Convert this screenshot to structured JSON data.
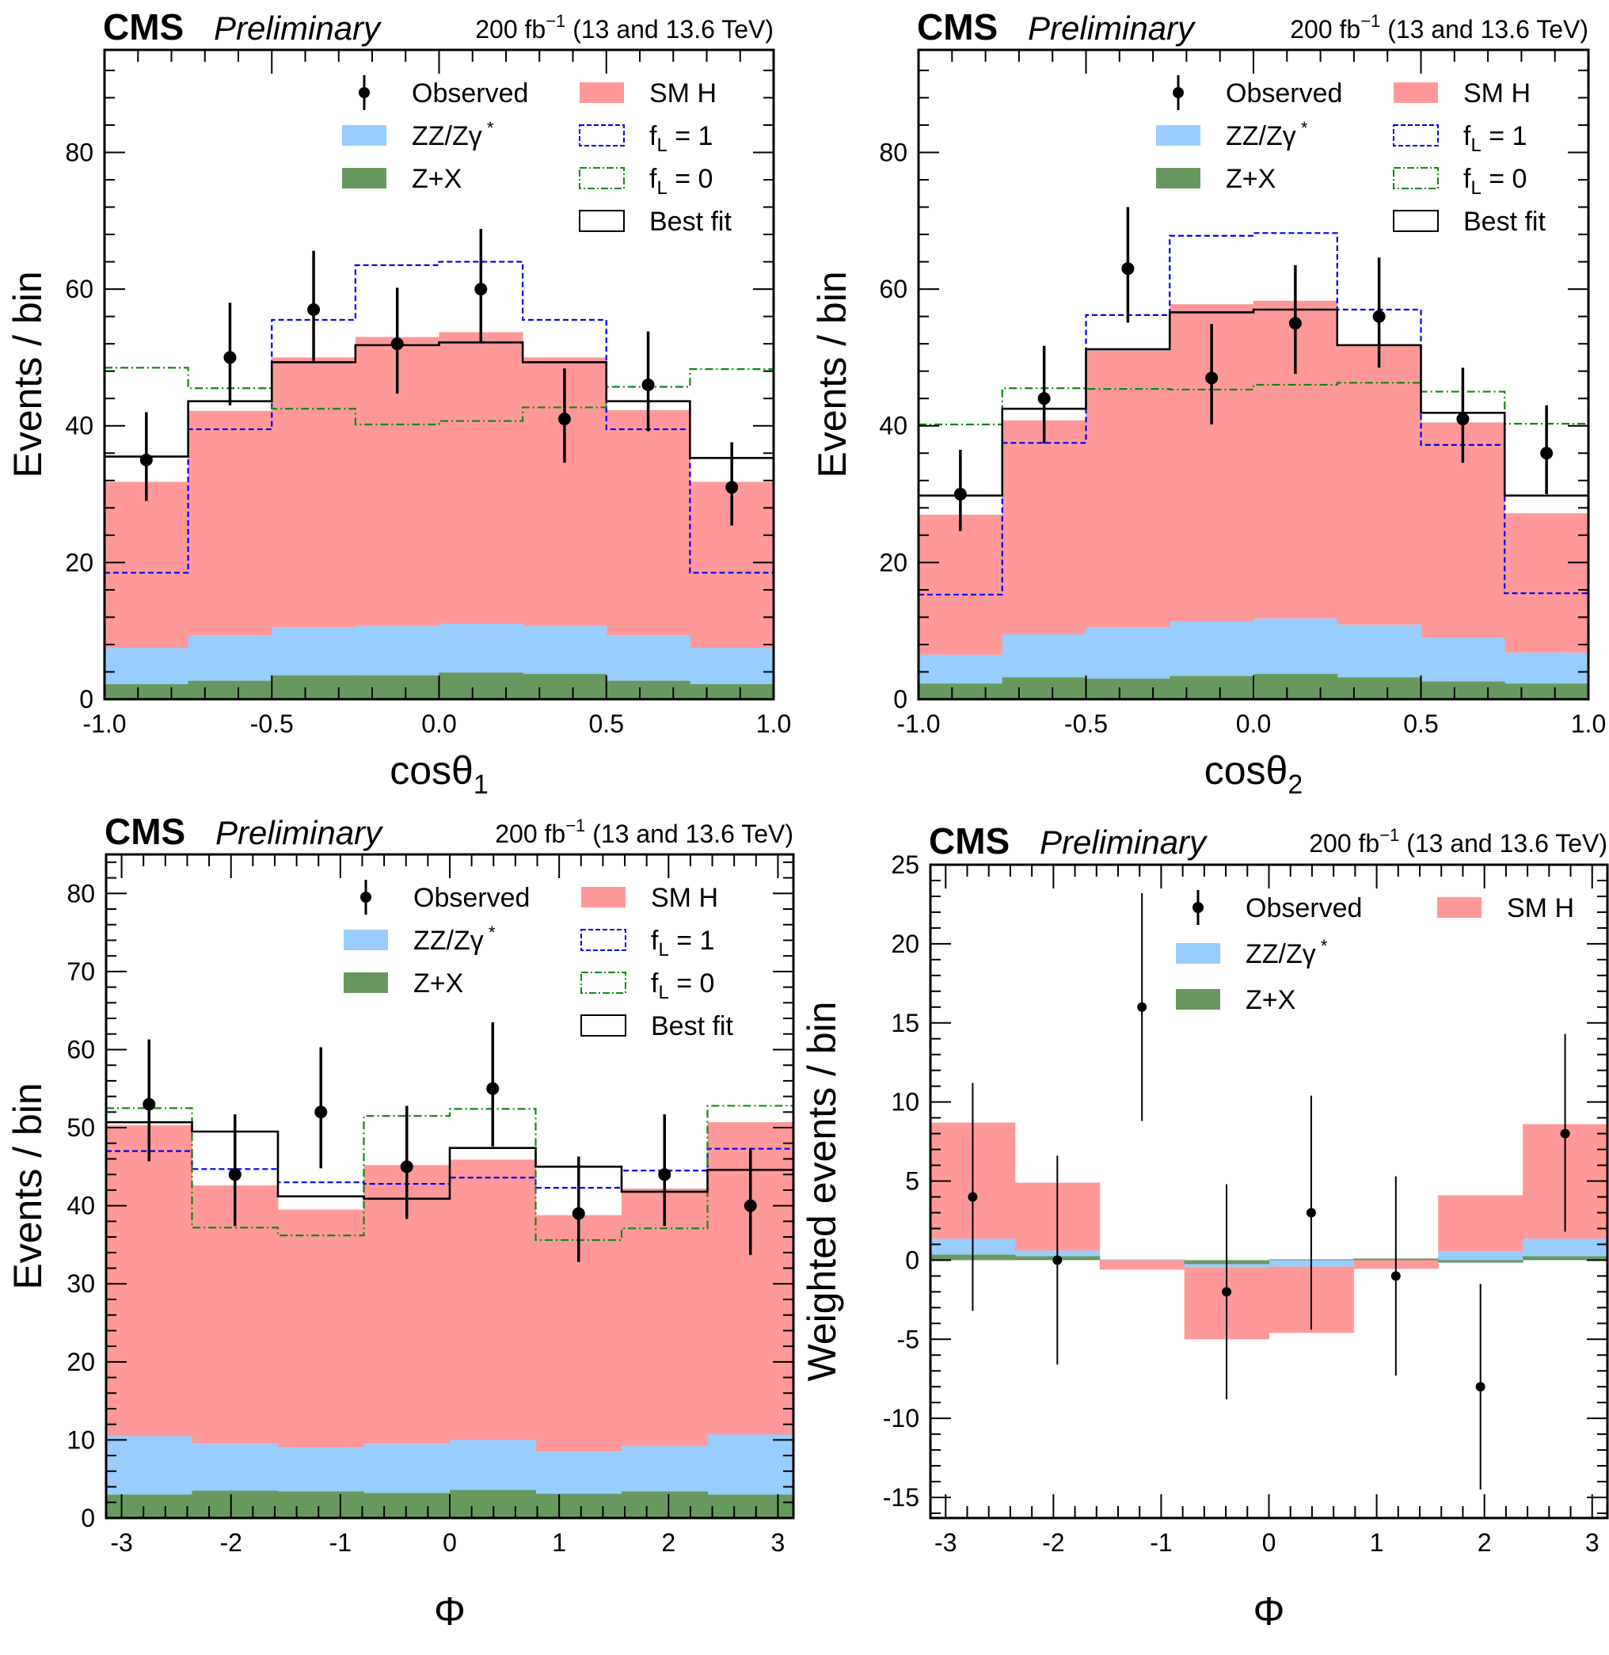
{
  "chart_data": [
    {
      "type": "bar",
      "id": "cos-theta1",
      "header": {
        "experiment": "CMS",
        "status": "Preliminary",
        "lumi": "200 fb",
        "lumi_exp": "−1",
        "energy": "(13 and 13.6 TeV)"
      },
      "xlabel": "cosθ",
      "xlabel_sub": "1",
      "ylabel": "Events / bin",
      "xlim": [
        -1.0,
        1.0
      ],
      "ylim": [
        0,
        95
      ],
      "xticks": [
        -1.0,
        -0.5,
        0.0,
        0.5,
        1.0
      ],
      "xtick_labels": [
        "-1.0",
        "-0.5",
        "0.0",
        "0.5",
        "1.0"
      ],
      "yticks": [
        0,
        20,
        40,
        60,
        80
      ],
      "bin_edges": [
        -1.0,
        -0.75,
        -0.5,
        -0.25,
        0.0,
        0.25,
        0.5,
        0.75,
        1.0
      ],
      "legend": {
        "placement": "top-right",
        "entries": [
          "Observed",
          "SM H",
          "ZZ/Zγ*",
          "f_L = 1",
          "Z+X",
          "f_L = 0",
          "Best fit"
        ]
      },
      "series": [
        {
          "name": "Z+X",
          "kind": "stack",
          "values": [
            2.2,
            2.7,
            3.5,
            3.5,
            3.9,
            3.7,
            2.7,
            2.2
          ]
        },
        {
          "name": "ZZ/Zγ*",
          "kind": "stack",
          "values": [
            5.3,
            6.6,
            7.0,
            7.2,
            7.1,
            7.0,
            6.6,
            5.3
          ]
        },
        {
          "name": "SM H",
          "kind": "stack",
          "values": [
            24.3,
            32.9,
            39.5,
            42.3,
            42.7,
            39.3,
            33.0,
            24.3
          ]
        },
        {
          "name": "f_L = 1",
          "kind": "step",
          "values": [
            18.5,
            39.5,
            55.5,
            63.5,
            64.0,
            55.5,
            39.5,
            18.5
          ]
        },
        {
          "name": "f_L = 0",
          "kind": "step",
          "values": [
            48.5,
            45.5,
            42.5,
            40.2,
            40.7,
            42.7,
            45.7,
            48.3
          ]
        },
        {
          "name": "Best fit",
          "kind": "step",
          "values": [
            35.5,
            43.6,
            49.3,
            51.8,
            52.2,
            49.3,
            43.6,
            35.3
          ]
        },
        {
          "name": "Observed",
          "kind": "points",
          "values": [
            35,
            50,
            57,
            52,
            60,
            41,
            46,
            31
          ],
          "err_low": [
            6.0,
            7.0,
            7.5,
            7.3,
            7.8,
            6.4,
            6.8,
            5.6
          ],
          "err_high": [
            7.0,
            8.0,
            8.6,
            8.2,
            8.8,
            7.4,
            7.8,
            6.6
          ]
        }
      ]
    },
    {
      "type": "bar",
      "id": "cos-theta2",
      "header": {
        "experiment": "CMS",
        "status": "Preliminary",
        "lumi": "200 fb",
        "lumi_exp": "−1",
        "energy": "(13 and 13.6 TeV)"
      },
      "xlabel": "cosθ",
      "xlabel_sub": "2",
      "ylabel": "Events / bin",
      "xlim": [
        -1.0,
        1.0
      ],
      "ylim": [
        0,
        95
      ],
      "xticks": [
        -1.0,
        -0.5,
        0.0,
        0.5,
        1.0
      ],
      "xtick_labels": [
        "-1.0",
        "-0.5",
        "0.0",
        "0.5",
        "1.0"
      ],
      "yticks": [
        0,
        20,
        40,
        60,
        80
      ],
      "bin_edges": [
        -1.0,
        -0.75,
        -0.5,
        -0.25,
        0.0,
        0.25,
        0.5,
        0.75,
        1.0
      ],
      "legend": {
        "placement": "top-right",
        "entries": [
          "Observed",
          "SM H",
          "ZZ/Zγ*",
          "f_L = 1",
          "Z+X",
          "f_L = 0",
          "Best fit"
        ]
      },
      "series": [
        {
          "name": "Z+X",
          "kind": "stack",
          "values": [
            2.3,
            3.2,
            3.0,
            3.4,
            3.7,
            3.2,
            2.6,
            2.3
          ]
        },
        {
          "name": "ZZ/Zγ*",
          "kind": "stack",
          "values": [
            4.2,
            6.3,
            7.5,
            8.0,
            8.1,
            7.7,
            6.4,
            4.5
          ]
        },
        {
          "name": "SM H",
          "kind": "stack",
          "values": [
            20.5,
            31.3,
            40.5,
            46.4,
            46.5,
            40.9,
            31.5,
            20.4
          ]
        },
        {
          "name": "f_L = 1",
          "kind": "step",
          "values": [
            15.3,
            37.5,
            56.2,
            67.8,
            68.2,
            57.0,
            37.2,
            15.5
          ]
        },
        {
          "name": "f_L = 0",
          "kind": "step",
          "values": [
            40.2,
            45.5,
            45.4,
            45.3,
            46.0,
            46.3,
            45.0,
            40.3
          ]
        },
        {
          "name": "Best fit",
          "kind": "step",
          "values": [
            29.8,
            42.5,
            51.2,
            56.6,
            57.0,
            51.8,
            41.9,
            29.8
          ]
        },
        {
          "name": "Observed",
          "kind": "points",
          "values": [
            30,
            44,
            63,
            47,
            55,
            56,
            41,
            36
          ],
          "err_low": [
            5.4,
            6.6,
            7.9,
            6.8,
            7.4,
            7.5,
            6.4,
            6.0
          ],
          "err_high": [
            6.5,
            7.7,
            9.0,
            7.9,
            8.5,
            8.6,
            7.5,
            7.0
          ]
        }
      ]
    },
    {
      "type": "bar",
      "id": "phi",
      "header": {
        "experiment": "CMS",
        "status": "Preliminary",
        "lumi": "200 fb",
        "lumi_exp": "−1",
        "energy": "(13 and 13.6 TeV)"
      },
      "xlabel": "Φ",
      "xlabel_sub": "",
      "ylabel": "Events / bin",
      "xlim": [
        -3.1416,
        3.1416
      ],
      "ylim": [
        0,
        85
      ],
      "xticks": [
        -3,
        -2,
        -1,
        0,
        1,
        2,
        3
      ],
      "xtick_labels": [
        "-3",
        "-2",
        "-1",
        "0",
        "1",
        "2",
        "3"
      ],
      "yticks": [
        0,
        10,
        20,
        30,
        40,
        50,
        60,
        70,
        80
      ],
      "bin_edges": [
        -3.1416,
        -2.3562,
        -1.5708,
        -0.7854,
        0.0,
        0.7854,
        1.5708,
        2.3562,
        3.1416
      ],
      "legend": {
        "placement": "top-right",
        "entries": [
          "Observed",
          "SM H",
          "ZZ/Zγ*",
          "f_L = 1",
          "Z+X",
          "f_L = 0",
          "Best fit"
        ]
      },
      "series": [
        {
          "name": "Z+X",
          "kind": "stack",
          "values": [
            3.0,
            3.5,
            3.4,
            3.2,
            3.6,
            3.1,
            3.4,
            3.0
          ]
        },
        {
          "name": "ZZ/Zγ*",
          "kind": "stack",
          "values": [
            7.5,
            6.0,
            5.6,
            6.3,
            6.4,
            5.4,
            5.8,
            7.7
          ]
        },
        {
          "name": "SM H",
          "kind": "stack",
          "values": [
            39.8,
            33.1,
            30.5,
            35.7,
            35.9,
            30.3,
            33.0,
            40.0
          ]
        },
        {
          "name": "f_L = 1",
          "kind": "step",
          "values": [
            47.0,
            44.7,
            43.0,
            42.8,
            43.6,
            42.3,
            44.5,
            47.3
          ]
        },
        {
          "name": "f_L = 0",
          "kind": "step",
          "values": [
            52.5,
            37.2,
            36.2,
            51.5,
            52.4,
            35.6,
            37.1,
            52.8
          ]
        },
        {
          "name": "Best fit",
          "kind": "step",
          "values": [
            50.7,
            49.5,
            41.2,
            40.9,
            47.4,
            45.0,
            41.8,
            44.6
          ]
        },
        {
          "name": "Observed",
          "kind": "points",
          "values": [
            53,
            44,
            52,
            45,
            55,
            39,
            44,
            40
          ],
          "err_low": [
            7.3,
            6.6,
            7.2,
            6.7,
            7.4,
            6.2,
            6.6,
            6.3
          ],
          "err_high": [
            8.3,
            7.7,
            8.3,
            7.8,
            8.5,
            7.3,
            7.7,
            7.4
          ]
        }
      ]
    },
    {
      "type": "bar",
      "id": "phi-weighted",
      "header": {
        "experiment": "CMS",
        "status": "Preliminary",
        "lumi": "200 fb",
        "lumi_exp": "−1",
        "energy": "(13 and 13.6 TeV)"
      },
      "xlabel": "Φ",
      "xlabel_sub": "",
      "ylabel": "Weighted events / bin",
      "xlim": [
        -3.1416,
        3.1416
      ],
      "ylim": [
        -16.3,
        25
      ],
      "xticks": [
        -3,
        -2,
        -1,
        0,
        1,
        2,
        3
      ],
      "xtick_labels": [
        "-3",
        "-2",
        "-1",
        "0",
        "1",
        "2",
        "3"
      ],
      "yticks": [
        -15,
        -10,
        -5,
        0,
        5,
        10,
        15,
        20,
        25
      ],
      "bin_edges": [
        -3.1416,
        -2.3562,
        -1.5708,
        -0.7854,
        0.0,
        0.7854,
        1.5708,
        2.3562,
        3.1416
      ],
      "legend": {
        "placement": "top-right",
        "entries": [
          "Observed",
          "SM H",
          "ZZ/Zγ*",
          "Z+X"
        ]
      },
      "series": [
        {
          "name": "Z+X",
          "kind": "stack",
          "values": [
            0.35,
            0.25,
            0.0,
            -0.25,
            0.05,
            0.1,
            -0.15,
            0.25
          ]
        },
        {
          "name": "ZZ/Zγ*",
          "kind": "stack",
          "values": [
            1.0,
            0.35,
            0.05,
            -0.2,
            -0.45,
            -0.05,
            0.7,
            1.1
          ]
        },
        {
          "name": "SM H",
          "kind": "stack",
          "values": [
            7.35,
            4.3,
            -0.65,
            -4.55,
            -4.2,
            -0.6,
            3.55,
            7.25
          ]
        },
        {
          "name": "Observed",
          "kind": "points",
          "values": [
            4,
            0,
            16,
            -2,
            3,
            -1,
            -8,
            8
          ],
          "err_low": [
            7.2,
            6.6,
            7.2,
            6.8,
            7.4,
            6.3,
            6.5,
            6.2
          ],
          "err_high": [
            7.2,
            6.6,
            7.2,
            6.8,
            7.4,
            6.3,
            6.5,
            6.3
          ]
        }
      ]
    }
  ]
}
